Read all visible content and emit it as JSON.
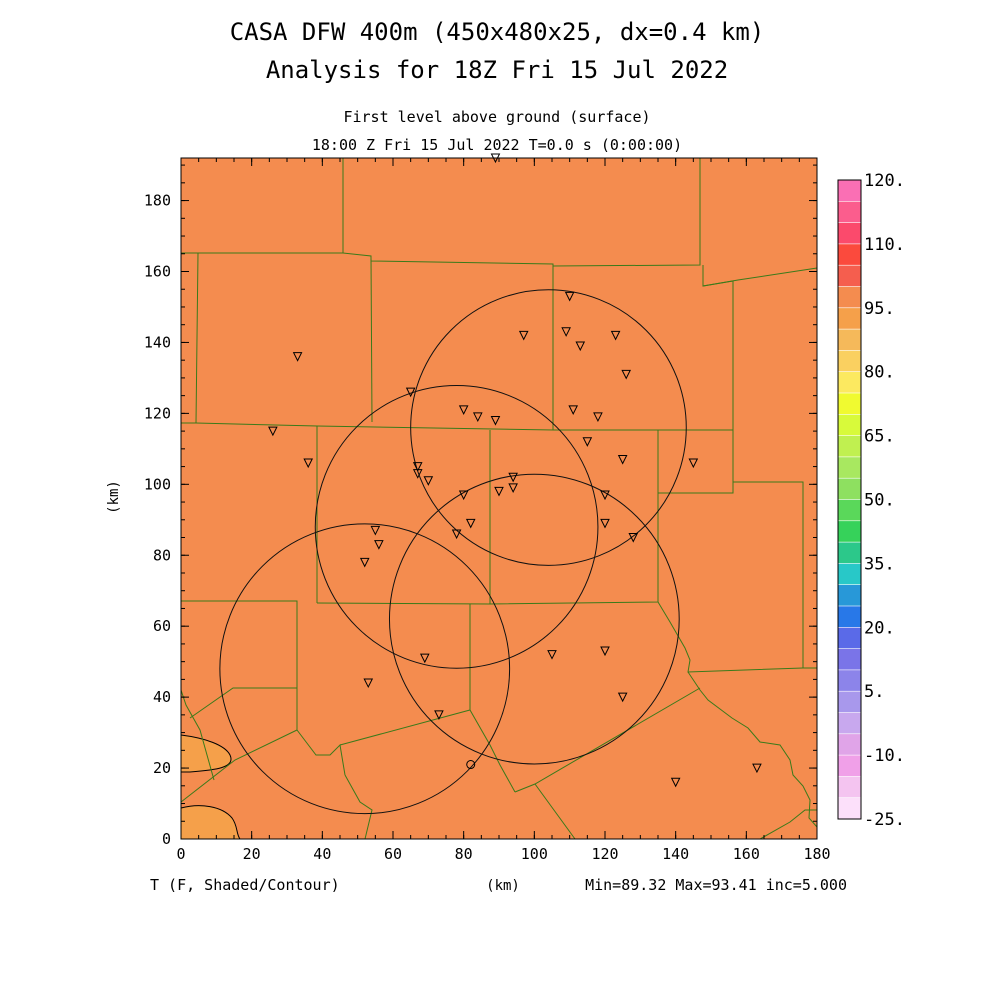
{
  "header": {
    "title_line1": "CASA DFW 400m (450x480x25, dx=0.4 km)",
    "title_line2": "Analysis for 18Z Fri 15 Jul 2022",
    "level": "First level above ground (surface)",
    "time": "18:00 Z Fri 15 Jul 2022    T=0.0 s (0:00:00)"
  },
  "footer": {
    "variable": "T (F, Shaded/Contour)",
    "xunit": "(km)",
    "stats": "Min=89.32 Max=93.41 inc=5.000"
  },
  "colors": {
    "field_main": "#f48c4f",
    "field_low": "#f5a04a",
    "county_lines": "#3a7a1a"
  },
  "chart_data": {
    "type": "heatmap",
    "title": "CASA DFW 400m (450x480x25, dx=0.4 km)",
    "subtitle": "Analysis for 18Z Fri 15 Jul 2022",
    "xlabel": "(km)",
    "ylabel": "(km)",
    "xlim": [
      0,
      180
    ],
    "ylim": [
      0,
      192
    ],
    "xticks": [
      "0",
      "20",
      "40",
      "60",
      "80",
      "100",
      "120",
      "140",
      "160",
      "180"
    ],
    "yticks": [
      "0",
      "20",
      "40",
      "60",
      "80",
      "100",
      "120",
      "140",
      "160",
      "180"
    ],
    "variable": "T (F)",
    "min": 89.32,
    "max": 93.41,
    "inc": 5.0,
    "colorbar": {
      "labels": [
        "120.",
        "110.",
        "95.",
        "80.",
        "65.",
        "50.",
        "35.",
        "20.",
        "5.",
        "-10.",
        "-25."
      ],
      "colors": [
        "#fa6fb4",
        "#fb5d8d",
        "#fb4a6c",
        "#fb4a3d",
        "#f55e4e",
        "#f48c4f",
        "#f5a04a",
        "#f5b95a",
        "#fad060",
        "#fce960",
        "#f0fa30",
        "#d8fa3a",
        "#c0f050",
        "#a8e860",
        "#8ee060",
        "#5ad85a",
        "#36d25a",
        "#2cc88a",
        "#28c8c8",
        "#2898d8",
        "#2878e8",
        "#5a6ae8",
        "#7a74e8",
        "#8c84ea",
        "#a898ec",
        "#c8a8ee",
        "#e0a4e8",
        "#f0a0e8",
        "#f4c4f0",
        "#fce0fa"
      ]
    },
    "radar_rings": [
      {
        "center": [
          78,
          88
        ],
        "radius": 40
      },
      {
        "center": [
          104,
          116
        ],
        "radius": 39
      },
      {
        "center": [
          52,
          48
        ],
        "radius": 41
      },
      {
        "center": [
          100,
          62
        ],
        "radius": 41
      }
    ],
    "stations": [
      [
        89,
        192
      ],
      [
        110,
        153
      ],
      [
        97,
        142
      ],
      [
        109,
        143
      ],
      [
        113,
        139
      ],
      [
        123,
        142
      ],
      [
        126,
        131
      ],
      [
        33,
        136
      ],
      [
        65,
        126
      ],
      [
        80,
        121
      ],
      [
        84,
        119
      ],
      [
        89,
        118
      ],
      [
        111,
        121
      ],
      [
        118,
        119
      ],
      [
        26,
        115
      ],
      [
        36,
        106
      ],
      [
        67,
        105
      ],
      [
        67,
        103
      ],
      [
        70,
        101
      ],
      [
        115,
        112
      ],
      [
        125,
        107
      ],
      [
        94,
        102
      ],
      [
        94,
        99
      ],
      [
        90,
        98
      ],
      [
        80,
        97
      ],
      [
        120,
        97
      ],
      [
        145,
        106
      ],
      [
        82,
        89
      ],
      [
        78,
        86
      ],
      [
        120,
        89
      ],
      [
        128,
        85
      ],
      [
        55,
        87
      ],
      [
        56,
        83
      ],
      [
        52,
        78
      ],
      [
        69,
        51
      ],
      [
        105,
        52
      ],
      [
        120,
        53
      ],
      [
        53,
        44
      ],
      [
        73,
        35
      ],
      [
        125,
        40
      ],
      [
        140,
        16
      ],
      [
        163,
        20
      ]
    ]
  }
}
